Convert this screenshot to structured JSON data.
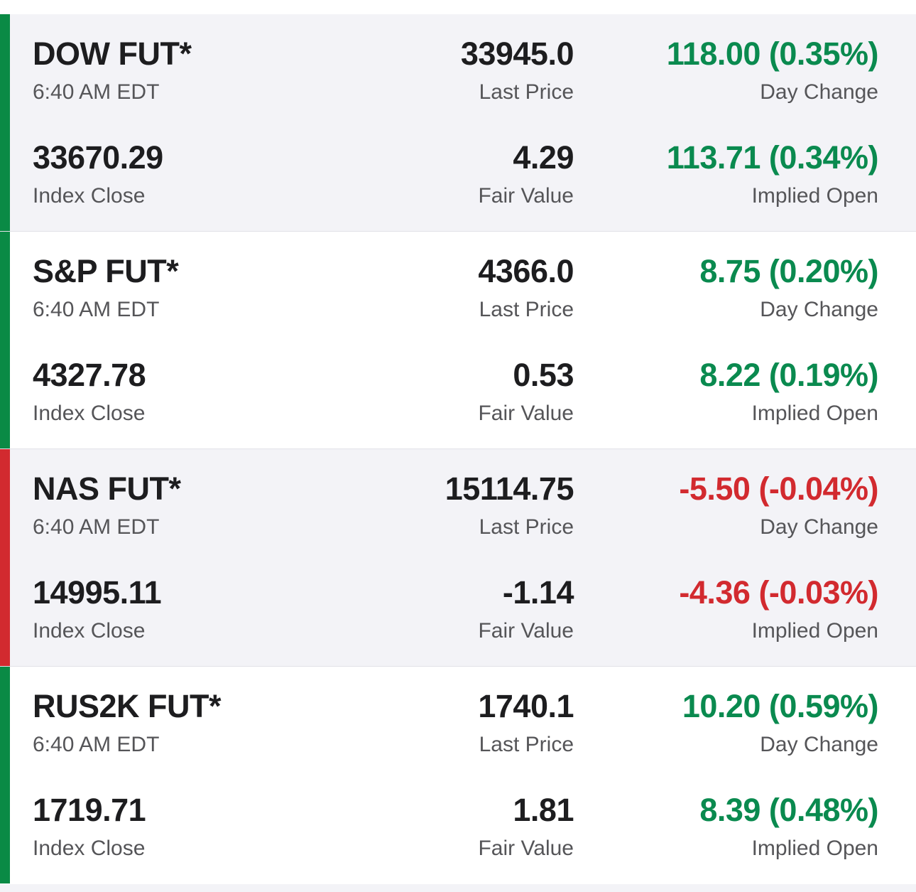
{
  "colors": {
    "up": "#0a8a45",
    "down": "#d22a2f",
    "shaded_bg": "#f3f3f7"
  },
  "labels": {
    "last_price": "Last Price",
    "day_change": "Day Change",
    "index_close": "Index Close",
    "fair_value": "Fair Value",
    "implied_open": "Implied Open"
  },
  "futures": [
    {
      "name": "DOW FUT*",
      "time": "6:40 AM EDT",
      "last_price": "33945.0",
      "day_change": "118.00 (0.35%)",
      "index_close": "33670.29",
      "fair_value": "4.29",
      "implied_open": "113.71 (0.34%)",
      "direction": "up"
    },
    {
      "name": "S&P FUT*",
      "time": "6:40 AM EDT",
      "last_price": "4366.0",
      "day_change": "8.75 (0.20%)",
      "index_close": "4327.78",
      "fair_value": "0.53",
      "implied_open": "8.22 (0.19%)",
      "direction": "up"
    },
    {
      "name": "NAS FUT*",
      "time": "6:40 AM EDT",
      "last_price": "15114.75",
      "day_change": "-5.50 (-0.04%)",
      "index_close": "14995.11",
      "fair_value": "-1.14",
      "implied_open": "-4.36 (-0.03%)",
      "direction": "down"
    },
    {
      "name": "RUS2K FUT*",
      "time": "6:40 AM EDT",
      "last_price": "1740.1",
      "day_change": "10.20 (0.59%)",
      "index_close": "1719.71",
      "fair_value": "1.81",
      "implied_open": "8.39 (0.48%)",
      "direction": "up"
    }
  ]
}
